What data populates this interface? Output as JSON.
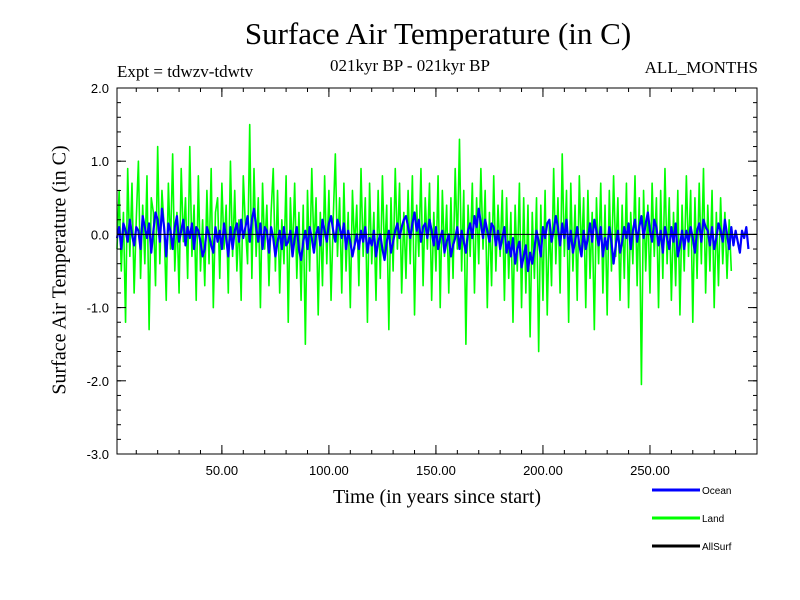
{
  "chart_data": {
    "type": "line",
    "title": "Surface Air Temperature (in C)",
    "subtitle_left": "Expt = tdwzv-tdwtv",
    "subtitle_center": "021kyr BP - 021kyr BP",
    "subtitle_right": "ALL_MONTHS",
    "xlabel": "Time (in years since start)",
    "ylabel": "Surface Air Temperature (in C)",
    "xlim": [
      1,
      300
    ],
    "ylim": [
      -3.0,
      2.0
    ],
    "x_ticks": [
      50,
      100,
      150,
      200,
      250
    ],
    "x_tick_labels": [
      "50.00",
      "100.00",
      "150.00",
      "200.00",
      "250.00"
    ],
    "y_ticks": [
      2.0,
      1.0,
      0.0,
      -1.0,
      -2.0,
      -3.0
    ],
    "y_tick_labels": [
      "2.0",
      "1.0",
      "0.0",
      "-1.0",
      "-2.0",
      "-3.0"
    ],
    "zero_line": 0.0,
    "legend_position": "bottom-right",
    "series": [
      {
        "name": "Ocean",
        "color": "#0000ff",
        "x_start": 1,
        "x_step": 1,
        "values": [
          -0.05,
          0.1,
          -0.2,
          0.15,
          0.05,
          -0.1,
          0.2,
          0.0,
          -0.15,
          0.1,
          0.05,
          -0.2,
          0.25,
          0.1,
          -0.05,
          0.15,
          -0.25,
          0.05,
          0.3,
          0.2,
          -0.1,
          0.35,
          0.1,
          -0.3,
          0.15,
          0.05,
          -0.2,
          0.1,
          0.25,
          -0.1,
          0.05,
          0.2,
          -0.15,
          0.1,
          -0.05,
          0.15,
          -0.2,
          0.1,
          0.05,
          -0.1,
          -0.3,
          -0.2,
          0.1,
          0.0,
          -0.15,
          -0.25,
          0.1,
          -0.1,
          0.05,
          -0.2,
          0.15,
          -0.05,
          -0.3,
          0.1,
          -0.2,
          0.05,
          0.15,
          -0.1,
          0.2,
          -0.05,
          0.1,
          0.25,
          -0.1,
          0.2,
          0.35,
          0.1,
          -0.1,
          0.15,
          -0.2,
          0.1,
          0.05,
          -0.25,
          0.1,
          -0.05,
          -0.3,
          -0.1,
          0.05,
          -0.2,
          0.1,
          -0.15,
          -0.1,
          0.05,
          -0.3,
          -0.05,
          0.1,
          -0.2,
          -0.35,
          -0.1,
          0.05,
          -0.2,
          0.1,
          -0.05,
          -0.25,
          0.0,
          0.1,
          -0.15,
          0.2,
          0.05,
          -0.1,
          0.15,
          0.25,
          0.05,
          -0.1,
          0.2,
          0.1,
          -0.05,
          0.15,
          -0.2,
          0.05,
          -0.1,
          -0.3,
          -0.15,
          0.0,
          -0.2,
          0.05,
          -0.1,
          0.1,
          -0.25,
          -0.05,
          -0.15,
          0.05,
          -0.3,
          -0.1,
          0.0,
          -0.2,
          -0.35,
          -0.1,
          0.05,
          -0.25,
          -0.1,
          0.05,
          0.15,
          -0.05,
          0.1,
          0.2,
          0.25,
          0.1,
          -0.05,
          0.15,
          0.3,
          0.05,
          0.2,
          -0.1,
          0.1,
          0.15,
          -0.05,
          0.2,
          0.05,
          -0.15,
          0.1,
          -0.2,
          -0.05,
          0.05,
          -0.25,
          -0.1,
          0.0,
          -0.3,
          -0.15,
          -0.05,
          0.1,
          -0.2,
          0.05,
          -0.1,
          -0.25,
          0.05,
          0.15,
          -0.05,
          0.25,
          0.1,
          0.35,
          0.15,
          -0.05,
          0.2,
          0.05,
          -0.1,
          0.15,
          0.1,
          -0.15,
          0.05,
          -0.2,
          -0.05,
          0.1,
          -0.25,
          -0.1,
          -0.3,
          -0.05,
          -0.4,
          -0.2,
          -0.1,
          -0.45,
          -0.3,
          -0.15,
          -0.5,
          -0.25,
          -0.4,
          -0.2,
          0.05,
          -0.1,
          -0.3,
          0.1,
          -0.05,
          0.15,
          0.2,
          -0.1,
          0.05,
          0.25,
          0.1,
          -0.15,
          0.15,
          -0.05,
          0.2,
          -0.2,
          0.05,
          -0.25,
          -0.1,
          0.1,
          -0.15,
          -0.3,
          0.05,
          -0.2,
          -0.05,
          0.15,
          -0.1,
          0.2,
          0.05,
          -0.15,
          0.1,
          -0.3,
          -0.05,
          -0.2,
          0.1,
          -0.1,
          -0.4,
          -0.15,
          0.05,
          -0.25,
          -0.1,
          0.1,
          -0.05,
          0.15,
          -0.2,
          0.05,
          0.2,
          -0.1,
          0.1,
          0.25,
          -0.05,
          0.15,
          0.3,
          0.05,
          -0.1,
          0.2,
          0.1,
          -0.15,
          0.05,
          -0.25,
          0.1,
          -0.05,
          -0.2,
          0.1,
          -0.1,
          0.15,
          -0.3,
          -0.15,
          0.05,
          -0.2,
          0.05,
          -0.1,
          0.1,
          -0.05,
          -0.25,
          0.05,
          0.15,
          -0.1,
          0.2,
          0.1,
          0.05,
          -0.15,
          0.1,
          -0.2,
          -0.05,
          0.15,
          0.05,
          -0.1,
          0.2,
          0.0,
          -0.2,
          0.1,
          -0.15,
          0.05,
          -0.1,
          -0.25,
          0.05,
          -0.05,
          0.1,
          -0.2
        ]
      },
      {
        "name": "Land",
        "color": "#00ff00",
        "x_start": 1,
        "x_step": 1,
        "values": [
          -0.2,
          0.6,
          -0.5,
          0.3,
          -1.2,
          0.9,
          -0.3,
          0.7,
          -0.8,
          0.2,
          1.0,
          -0.6,
          0.4,
          -0.4,
          0.8,
          -1.3,
          0.5,
          0.3,
          -0.7,
          1.2,
          -0.4,
          0.6,
          0.1,
          -0.9,
          0.7,
          -0.2,
          1.1,
          -0.5,
          0.3,
          -0.8,
          0.9,
          -0.1,
          0.5,
          -0.6,
          1.2,
          -0.3,
          0.4,
          -0.9,
          0.8,
          -0.5,
          0.2,
          -0.7,
          0.6,
          -0.4,
          0.9,
          -1.0,
          0.3,
          0.5,
          -0.6,
          0.7,
          -0.2,
          0.4,
          -0.8,
          1.0,
          -0.3,
          0.6,
          -0.5,
          0.2,
          -0.9,
          0.8,
          0.1,
          -0.4,
          1.5,
          -0.6,
          0.9,
          -0.3,
          0.5,
          -1.0,
          0.7,
          -0.2,
          0.4,
          -0.7,
          0.3,
          0.9,
          -0.5,
          0.6,
          -0.8,
          0.2,
          -0.4,
          0.8,
          -1.2,
          0.5,
          -0.3,
          0.7,
          -0.6,
          0.3,
          -0.9,
          0.4,
          -1.5,
          0.6,
          -0.5,
          0.9,
          -0.2,
          0.5,
          -1.1,
          0.3,
          -0.7,
          0.8,
          -0.4,
          0.6,
          -0.9,
          0.2,
          1.1,
          -0.3,
          0.5,
          -0.8,
          0.7,
          -0.5,
          0.3,
          -1.0,
          0.6,
          -0.2,
          0.4,
          -0.7,
          0.9,
          -0.3,
          0.5,
          -1.2,
          0.7,
          -0.4,
          0.3,
          -0.9,
          0.6,
          -0.6,
          0.8,
          -0.3,
          0.4,
          -1.3,
          0.5,
          -0.5,
          0.9,
          -0.2,
          0.7,
          -0.8,
          0.3,
          -0.6,
          0.6,
          -0.4,
          0.8,
          -1.1,
          0.4,
          -0.3,
          0.9,
          -0.7,
          0.5,
          -0.2,
          0.7,
          -0.9,
          0.3,
          -0.5,
          0.8,
          -1.0,
          0.6,
          -0.3,
          0.4,
          -0.8,
          0.5,
          -0.6,
          0.9,
          -0.2,
          1.3,
          -0.5,
          0.6,
          -1.5,
          0.4,
          -0.3,
          0.7,
          -0.8,
          0.5,
          -0.4,
          0.9,
          -0.2,
          0.6,
          -1.0,
          0.3,
          -0.7,
          0.8,
          -0.5,
          0.4,
          -0.3,
          0.6,
          -0.9,
          0.5,
          -0.6,
          0.3,
          -1.2,
          0.4,
          -0.5,
          0.7,
          -1.0,
          0.5,
          -0.8,
          0.4,
          -1.4,
          0.3,
          -0.6,
          0.5,
          -1.6,
          0.4,
          -0.9,
          0.6,
          -1.1,
          0.2,
          -0.7,
          0.9,
          -0.4,
          0.5,
          -0.8,
          1.1,
          -0.3,
          0.6,
          -1.2,
          0.7,
          -0.5,
          0.4,
          -0.9,
          0.8,
          -0.3,
          0.5,
          -1.0,
          0.6,
          -0.6,
          0.3,
          -1.3,
          0.5,
          -0.4,
          0.7,
          -0.8,
          0.4,
          -1.1,
          0.6,
          -0.5,
          0.8,
          -0.3,
          0.5,
          -0.9,
          0.4,
          -0.6,
          0.7,
          -1.0,
          0.3,
          -0.4,
          0.8,
          -0.7,
          0.5,
          -2.05,
          0.6,
          -0.5,
          0.4,
          -0.8,
          0.7,
          -0.3,
          0.5,
          -1.0,
          0.6,
          -0.6,
          0.9,
          -0.4,
          0.5,
          -0.9,
          0.3,
          -0.7,
          0.6,
          -1.1,
          0.4,
          -0.5,
          0.8,
          -0.3,
          0.6,
          -1.2,
          0.5,
          -0.6,
          0.7,
          -0.4,
          0.9,
          -0.8,
          0.4,
          -0.5,
          0.6,
          -1.0,
          0.3,
          -0.7,
          0.5,
          -0.4,
          0.3,
          -0.6,
          0.2,
          -0.5
        ]
      },
      {
        "name": "AllSurf",
        "color": "#000000",
        "x_start": 1,
        "x_step": 1,
        "values": []
      }
    ]
  }
}
